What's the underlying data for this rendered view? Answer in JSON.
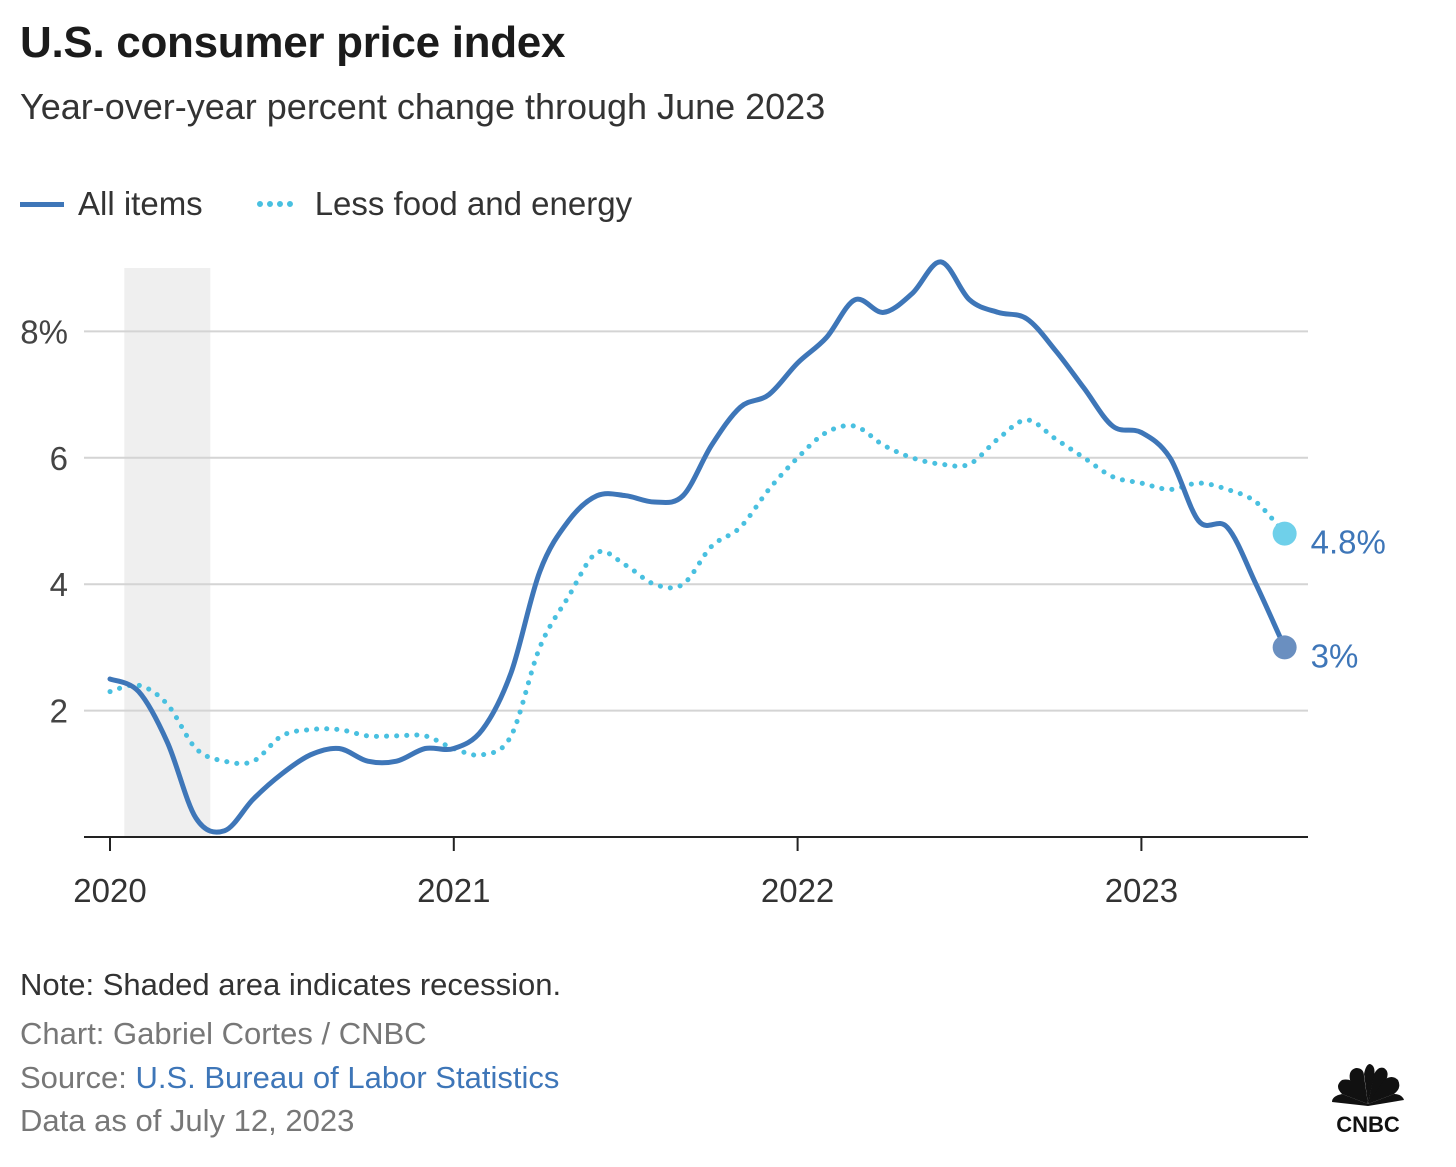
{
  "title": "U.S. consumer price index",
  "subtitle": "Year-over-year percent change through June 2023",
  "legend": [
    {
      "label": "All items",
      "style": "solid",
      "color": "#3e76b8"
    },
    {
      "label": "Less food and energy",
      "style": "dotted",
      "color": "#49c0e0"
    }
  ],
  "footer": {
    "note": "Note: Shaded area indicates recession.",
    "credit": "Chart: Gabriel Cortes / CNBC",
    "source_prefix": "Source: ",
    "source_link": "U.S. Bureau of Labor Statistics",
    "asof": "Data as of July 12, 2023"
  },
  "logo": {
    "text": "CNBC",
    "icon": "peacock-icon"
  },
  "chart_data": {
    "type": "line",
    "title": "U.S. consumer price index",
    "subtitle": "Year-over-year percent change through June 2023",
    "xlabel": "",
    "ylabel": "",
    "x": [
      "2020-01",
      "2020-02",
      "2020-03",
      "2020-04",
      "2020-05",
      "2020-06",
      "2020-07",
      "2020-08",
      "2020-09",
      "2020-10",
      "2020-11",
      "2020-12",
      "2021-01",
      "2021-02",
      "2021-03",
      "2021-04",
      "2021-05",
      "2021-06",
      "2021-07",
      "2021-08",
      "2021-09",
      "2021-10",
      "2021-11",
      "2021-12",
      "2022-01",
      "2022-02",
      "2022-03",
      "2022-04",
      "2022-05",
      "2022-06",
      "2022-07",
      "2022-08",
      "2022-09",
      "2022-10",
      "2022-11",
      "2022-12",
      "2023-01",
      "2023-02",
      "2023-03",
      "2023-04",
      "2023-05",
      "2023-06"
    ],
    "series": [
      {
        "name": "All items",
        "style": "solid",
        "color": "#3e76b8",
        "values": [
          2.5,
          2.3,
          1.5,
          0.3,
          0.1,
          0.6,
          1.0,
          1.3,
          1.4,
          1.2,
          1.2,
          1.4,
          1.4,
          1.7,
          2.6,
          4.2,
          5.0,
          5.4,
          5.4,
          5.3,
          5.4,
          6.2,
          6.8,
          7.0,
          7.5,
          7.9,
          8.5,
          8.3,
          8.6,
          9.1,
          8.5,
          8.3,
          8.2,
          7.7,
          7.1,
          6.5,
          6.4,
          6.0,
          5.0,
          4.9,
          4.0,
          3.0
        ],
        "end_label": "3%"
      },
      {
        "name": "Less food and energy",
        "style": "dotted",
        "color": "#49c0e0",
        "values": [
          2.3,
          2.4,
          2.1,
          1.4,
          1.2,
          1.2,
          1.6,
          1.7,
          1.7,
          1.6,
          1.6,
          1.6,
          1.4,
          1.3,
          1.6,
          3.0,
          3.8,
          4.5,
          4.3,
          4.0,
          4.0,
          4.6,
          4.9,
          5.5,
          6.0,
          6.4,
          6.5,
          6.2,
          6.0,
          5.9,
          5.9,
          6.3,
          6.6,
          6.3,
          6.0,
          5.7,
          5.6,
          5.5,
          5.6,
          5.5,
          5.3,
          4.8
        ],
        "end_label": "4.8%"
      }
    ],
    "ylim": [
      0,
      9.2
    ],
    "yticks": [
      2,
      4,
      6,
      8
    ],
    "ytick_labels": [
      "2",
      "4",
      "6",
      "8%"
    ],
    "xticks": [
      "2020-01",
      "2021-01",
      "2022-01",
      "2023-01"
    ],
    "xtick_labels": [
      "2020",
      "2021",
      "2022",
      "2023"
    ],
    "recession": {
      "start": "2020-02",
      "end": "2020-04",
      "color": "#efefef"
    },
    "grid": true,
    "legend_position": "top-left"
  }
}
